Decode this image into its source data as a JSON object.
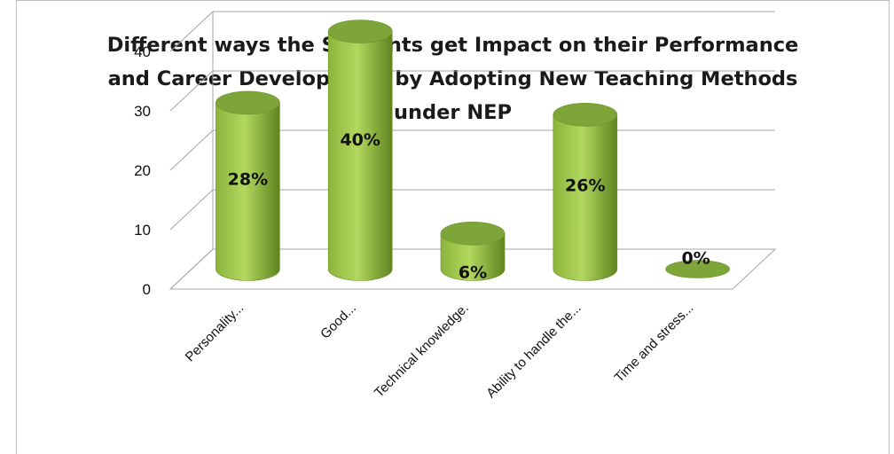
{
  "chart_data": {
    "type": "bar",
    "title_lines": [
      "Different ways the Students get Impact on their Performance",
      "and Career Development by Adopting New Teaching Methods",
      "under NEP"
    ],
    "categories": [
      "Personality...",
      "Good...",
      "Technical knowledge.",
      "Ability to handle the...",
      "Time and stress..."
    ],
    "values": [
      28,
      40,
      6,
      26,
      0
    ],
    "data_labels": [
      "28%",
      "40%",
      "6%",
      "26%",
      "0%"
    ],
    "yticks": [
      "0",
      "10",
      "20",
      "30",
      "40"
    ],
    "ylim": [
      0,
      40
    ],
    "grid": true,
    "legend": "none",
    "style": "3d-cylinder",
    "colors": {
      "bar_light": "#b2d85f",
      "bar_mid": "#8cb33a",
      "bar_dark": "#5e8420",
      "bar_top": "#7da53a",
      "grid": "#a6a6a6"
    }
  }
}
